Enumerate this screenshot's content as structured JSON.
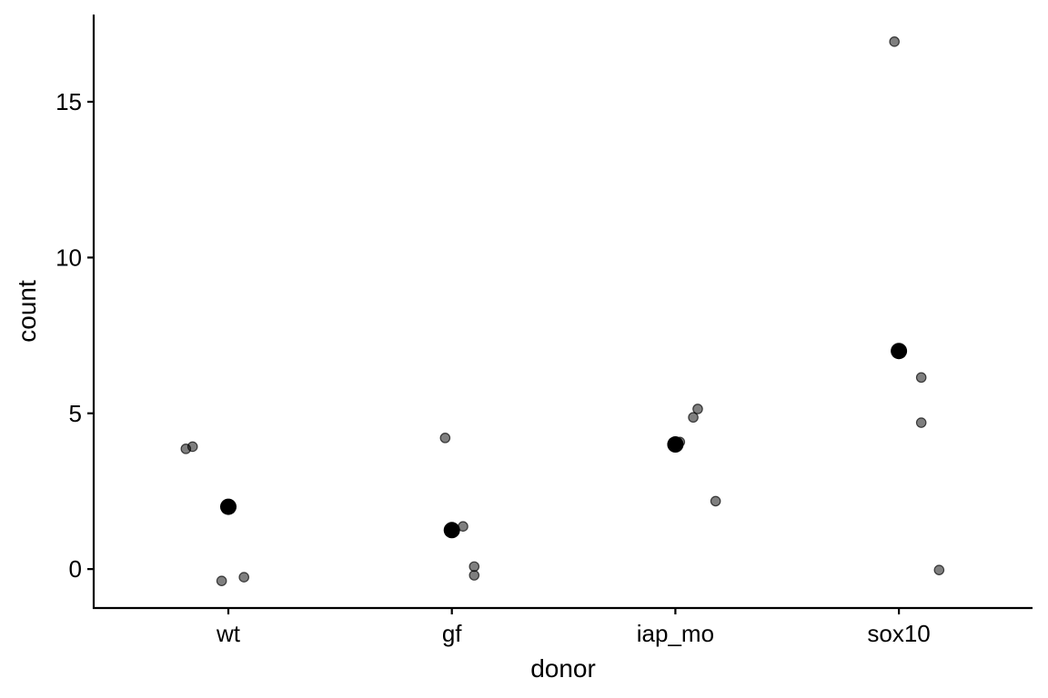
{
  "chart_data": {
    "type": "scatter",
    "title": "",
    "xlabel": "donor",
    "ylabel": "count",
    "categories": [
      "wt",
      "gf",
      "iap_mo",
      "sox10"
    ],
    "ylim": [
      -1.25,
      17.8
    ],
    "yticks": [
      0,
      5,
      10,
      15
    ],
    "ytick_labels": [
      "0",
      "5",
      "10",
      "15"
    ],
    "grid": false,
    "legend": "none",
    "series": [
      {
        "role": "observations",
        "color": "#000000",
        "opacity": 0.5,
        "points": [
          {
            "category": "wt",
            "jitter": -0.19,
            "y": 3.86
          },
          {
            "category": "wt",
            "jitter": -0.16,
            "y": 3.93
          },
          {
            "category": "wt",
            "jitter": -0.03,
            "y": -0.38
          },
          {
            "category": "wt",
            "jitter": 0.07,
            "y": -0.26
          },
          {
            "category": "gf",
            "jitter": -0.03,
            "y": 4.21
          },
          {
            "category": "gf",
            "jitter": 0.05,
            "y": 1.37
          },
          {
            "category": "gf",
            "jitter": 0.1,
            "y": 0.08
          },
          {
            "category": "gf",
            "jitter": 0.1,
            "y": -0.2
          },
          {
            "category": "iap_mo",
            "jitter": 0.02,
            "y": 4.08
          },
          {
            "category": "iap_mo",
            "jitter": 0.08,
            "y": 4.87
          },
          {
            "category": "iap_mo",
            "jitter": 0.1,
            "y": 5.14
          },
          {
            "category": "iap_mo",
            "jitter": 0.18,
            "y": 2.18
          },
          {
            "category": "sox10",
            "jitter": -0.02,
            "y": 16.93
          },
          {
            "category": "sox10",
            "jitter": 0.1,
            "y": 6.15
          },
          {
            "category": "sox10",
            "jitter": 0.1,
            "y": 4.7
          },
          {
            "category": "sox10",
            "jitter": 0.18,
            "y": -0.03
          }
        ]
      },
      {
        "role": "group-mean",
        "color": "#000000",
        "opacity": 1,
        "points": [
          {
            "category": "wt",
            "jitter": 0,
            "y": 2.0
          },
          {
            "category": "gf",
            "jitter": 0,
            "y": 1.25
          },
          {
            "category": "iap_mo",
            "jitter": 0,
            "y": 4.0
          },
          {
            "category": "sox10",
            "jitter": 0,
            "y": 7.0
          }
        ]
      }
    ]
  }
}
